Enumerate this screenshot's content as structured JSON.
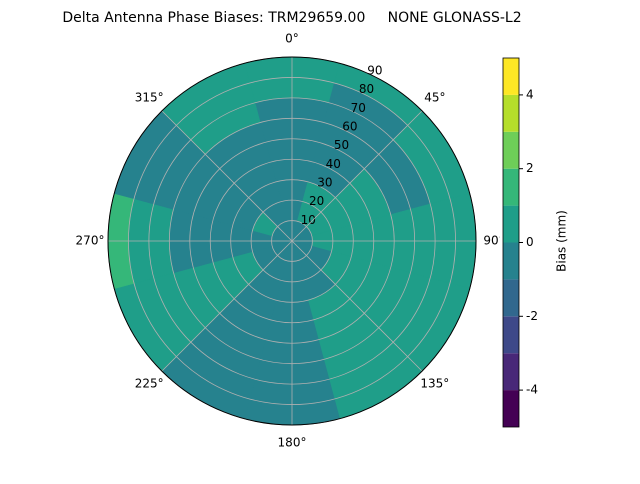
{
  "chart_data": {
    "type": "polar-contour",
    "title": "Delta Antenna Phase Biases: TRM29659.00     NONE GLONASS-L2",
    "azimuth": [
      0,
      30,
      60,
      90,
      120,
      150,
      180,
      210,
      240,
      270,
      300,
      330
    ],
    "rlim": [
      0,
      90
    ],
    "rticks": [
      10,
      20,
      30,
      40,
      50,
      60,
      70,
      80,
      90
    ],
    "thetaticks": [
      {
        "value": 0,
        "label": "0°"
      },
      {
        "value": 45,
        "label": "45°"
      },
      {
        "value": 90,
        "label": "90°"
      },
      {
        "value": 135,
        "label": "135°"
      },
      {
        "value": 180,
        "label": "180°"
      },
      {
        "value": 225,
        "label": "225°"
      },
      {
        "value": 270,
        "label": "270°"
      },
      {
        "value": 315,
        "label": "315°"
      }
    ],
    "z": [
      [
        -0.5,
        -0.5,
        -0.5,
        -0.5,
        -0.5,
        -0.5,
        -0.5,
        -0.5,
        -0.5,
        -0.5,
        -0.5,
        -0.5
      ],
      [
        -0.5,
        0.5,
        0.5,
        0.5,
        -0.5,
        -0.5,
        -0.5,
        -0.5,
        -0.5,
        -0.5,
        0.5,
        -0.5
      ],
      [
        -0.5,
        0.5,
        0.5,
        0.5,
        0.5,
        -0.5,
        -0.5,
        -0.5,
        0.5,
        -0.5,
        -0.5,
        -0.5
      ],
      [
        -0.5,
        -0.5,
        0.5,
        0.5,
        0.5,
        0.5,
        -0.5,
        -0.5,
        0.5,
        -0.5,
        -0.5,
        -0.5
      ],
      [
        -0.5,
        -0.5,
        0.5,
        0.5,
        0.5,
        0.5,
        -0.5,
        -0.5,
        0.5,
        -0.5,
        -0.5,
        -0.5
      ],
      [
        -0.5,
        -0.5,
        -0.5,
        0.5,
        0.5,
        0.5,
        -0.5,
        -0.5,
        0.5,
        -0.5,
        -0.5,
        -0.5
      ],
      [
        -0.5,
        -0.5,
        -0.5,
        0.5,
        0.5,
        0.5,
        -0.5,
        -0.5,
        0.5,
        0.5,
        -0.5,
        0.5
      ],
      [
        0.5,
        -0.5,
        0.5,
        0.5,
        0.5,
        0.5,
        -0.5,
        -0.5,
        0.5,
        0.5,
        -0.5,
        0.5
      ],
      [
        0.5,
        0.5,
        0.5,
        0.5,
        0.5,
        0.5,
        -0.5,
        -0.5,
        0.5,
        1.5,
        -0.5,
        0.5
      ]
    ],
    "levels": [
      -5,
      -4,
      -3,
      -2,
      -1,
      0,
      1,
      2,
      3,
      4,
      5
    ],
    "colors": [
      "#440154",
      "#482878",
      "#3e4989",
      "#31688e",
      "#26828e",
      "#1f9e89",
      "#35b779",
      "#6ece58",
      "#b5de2b",
      "#fde725"
    ],
    "colorbar_ticks": [
      -4,
      -2,
      0,
      2,
      4
    ],
    "colorbar_label": "Bias (mm)",
    "grid": true
  }
}
